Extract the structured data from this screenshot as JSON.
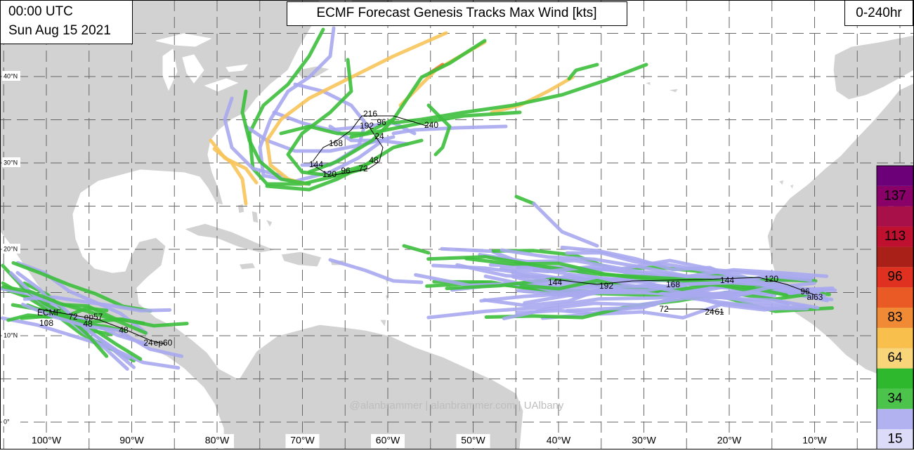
{
  "header": {
    "time": "00:00 UTC",
    "date": "Sun Aug 15 2021",
    "title": "ECMF Forecast Genesis Tracks Max Wind [kts]",
    "range": "0-240hr"
  },
  "map": {
    "lat_labels": [
      "40°N",
      "30°N",
      "20°N",
      "10°N",
      "0°"
    ],
    "lon_labels": [
      "100°W",
      "90°W",
      "80°W",
      "70°W",
      "60°W",
      "50°W",
      "40°W",
      "30°W",
      "20°W",
      "10°W"
    ],
    "track_labels": [
      "216",
      "96",
      "192",
      "24",
      "240",
      "168",
      "48",
      "144",
      "72",
      "96",
      "120",
      "144",
      "192",
      "168",
      "144",
      "120",
      "96",
      "al63",
      "72",
      "24",
      "61",
      "108",
      "ECMF",
      "72",
      "ep57",
      "48",
      "48",
      "24",
      "ep60"
    ],
    "watermark": "@alanbrammer | alanbrammer.com | UAlbany"
  },
  "colorbar": {
    "labels": [
      15,
      34,
      64,
      83,
      96,
      113,
      137
    ],
    "colors": [
      "#dcdcf8",
      "#b2b2f0",
      "#4cc44c",
      "#2eb82e",
      "#f9d57a",
      "#f8bf4c",
      "#f08a34",
      "#ea5a24",
      "#e03020",
      "#a82018",
      "#c01030",
      "#a8104a",
      "#880068",
      "#6c0078"
    ]
  }
}
